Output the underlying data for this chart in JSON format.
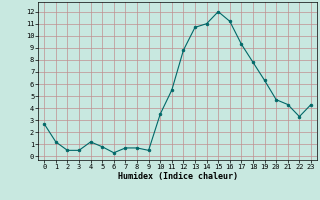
{
  "x": [
    0,
    1,
    2,
    3,
    4,
    5,
    6,
    7,
    8,
    9,
    10,
    11,
    12,
    13,
    14,
    15,
    16,
    17,
    18,
    19,
    20,
    21,
    22,
    23
  ],
  "y": [
    2.7,
    1.2,
    0.5,
    0.5,
    1.2,
    0.8,
    0.3,
    0.7,
    0.7,
    0.5,
    3.5,
    5.5,
    8.8,
    10.7,
    11.0,
    12.0,
    11.2,
    9.3,
    7.8,
    6.3,
    4.7,
    4.3,
    3.3,
    4.3
  ],
  "xlabel": "Humidex (Indice chaleur)",
  "ylim": [
    -0.3,
    12.8
  ],
  "xlim": [
    -0.5,
    23.5
  ],
  "line_color": "#006868",
  "marker_color": "#006868",
  "bg_color": "#c8e8e0",
  "grid_color": "#c09090",
  "yticks": [
    0,
    1,
    2,
    3,
    4,
    5,
    6,
    7,
    8,
    9,
    10,
    11,
    12
  ],
  "xticks": [
    0,
    1,
    2,
    3,
    4,
    5,
    6,
    7,
    8,
    9,
    10,
    11,
    12,
    13,
    14,
    15,
    16,
    17,
    18,
    19,
    20,
    21,
    22,
    23
  ],
  "tick_fontsize": 5.0,
  "xlabel_fontsize": 6.0
}
